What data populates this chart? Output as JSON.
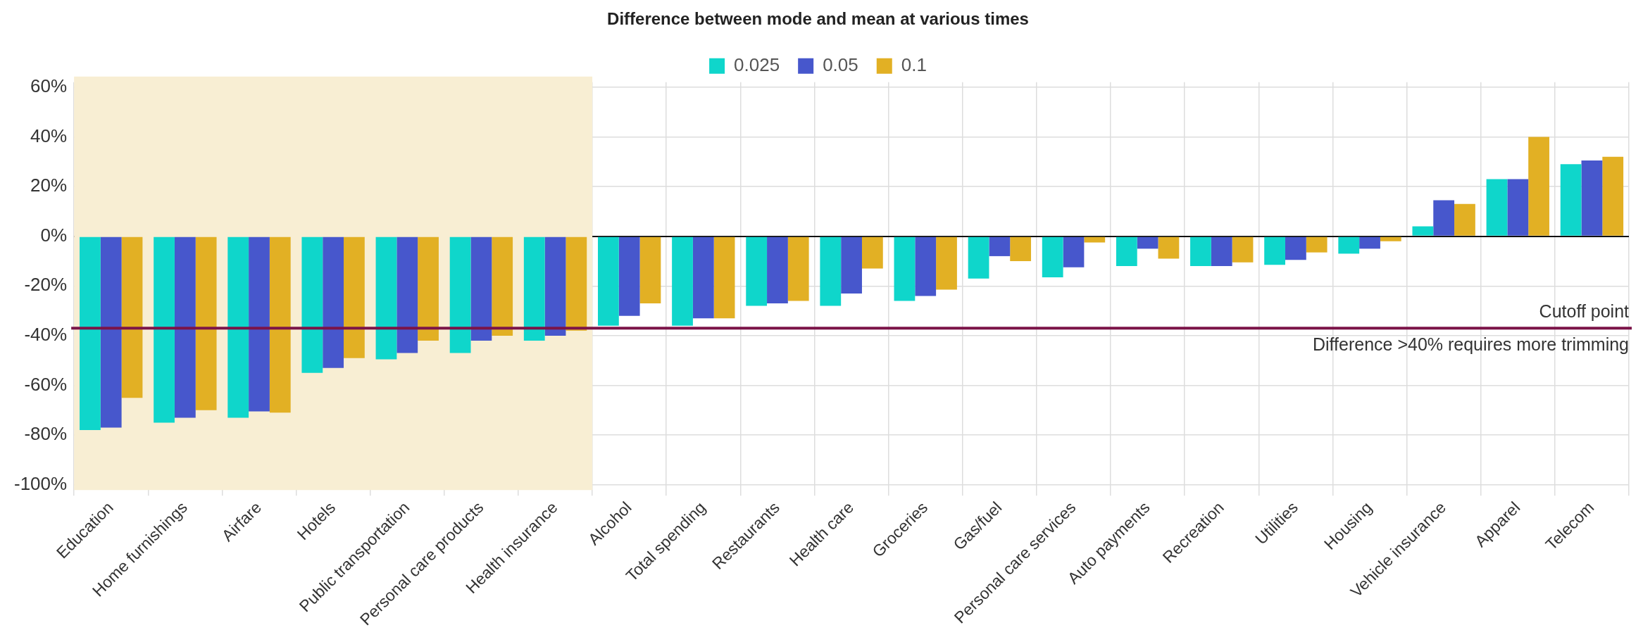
{
  "chart_data": {
    "type": "bar",
    "title": "Difference between mode and mean at various times",
    "categories": [
      "Education",
      "Home furnishings",
      "Airfare",
      "Hotels",
      "Public transportation",
      "Personal care products",
      "Health insurance",
      "Alcohol",
      "Total spending",
      "Restaurants",
      "Health care",
      "Groceries",
      "Gas/fuel",
      "Personal care services",
      "Auto payments",
      "Recreation",
      "Utilities",
      "Housing",
      "Vehicle insurance",
      "Apparel",
      "Telecom"
    ],
    "series": [
      {
        "name": "0.025",
        "color": "#0fd6cb",
        "values": [
          -78,
          -75,
          -73,
          -55,
          -49.5,
          -47,
          -42,
          -36,
          -36,
          -28,
          -28,
          -26,
          -17,
          -16.5,
          -12,
          -12,
          -11.5,
          -7,
          4,
          23,
          29
        ]
      },
      {
        "name": "0.05",
        "color": "#4757cc",
        "values": [
          -77,
          -73,
          -70.5,
          -53,
          -47,
          -42,
          -40,
          -32,
          -33,
          -27,
          -23,
          -24,
          -8,
          -12.5,
          -5,
          -12,
          -9.5,
          -5,
          14.5,
          23,
          30.5
        ]
      },
      {
        "name": "0.1",
        "color": "#e2b024",
        "values": [
          -65,
          -70,
          -71,
          -49,
          -42,
          -40,
          -38,
          -27,
          -33,
          -26,
          -13,
          -21.5,
          -10,
          -2.5,
          -9,
          -10.5,
          -6.5,
          -2,
          13,
          40,
          32
        ]
      }
    ],
    "ylim": [
      -101,
      62
    ],
    "yticks": [
      {
        "value": -100,
        "label": "-100%"
      },
      {
        "value": -80,
        "label": "-80%"
      },
      {
        "value": -60,
        "label": "-60%"
      },
      {
        "value": -40,
        "label": "-40%"
      },
      {
        "value": -20,
        "label": "-20%"
      },
      {
        "value": 0,
        "label": "0%"
      },
      {
        "value": 20,
        "label": "20%"
      },
      {
        "value": 40,
        "label": "40%"
      },
      {
        "value": 60,
        "label": "60%"
      }
    ],
    "grid": true,
    "legend": "top",
    "ref_lines": [
      {
        "axis": "y",
        "value": -37,
        "label": "Cutoff point",
        "color": "#7b1448"
      }
    ],
    "bands": [
      {
        "axis": "x",
        "from": "Education",
        "to": "Health insurance",
        "color": "#f8eed3"
      }
    ],
    "annotations": [
      "Difference >40% requires more trimming"
    ]
  }
}
